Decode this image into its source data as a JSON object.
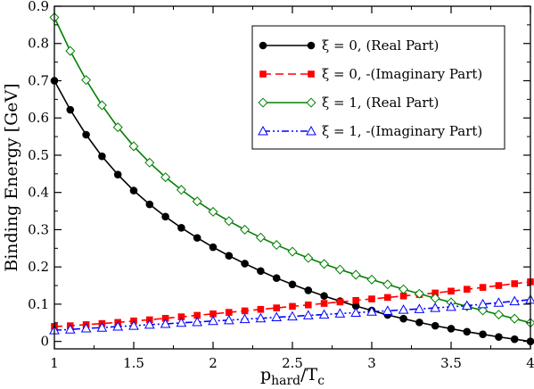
{
  "chart_data": {
    "type": "line",
    "xlabel": "p",
    "xlabel_sub": "hard",
    "xlabel_mid": "/T",
    "xlabel_sub2": "c",
    "ylabel": "Binding Energy [GeV]",
    "xlim": [
      1,
      4
    ],
    "ylim": [
      -0.02,
      0.9
    ],
    "xticks": [
      1,
      1.5,
      2,
      2.5,
      3,
      3.5,
      4
    ],
    "xtick_labels": [
      "1",
      "1.5",
      "2",
      "2.5",
      "3",
      "3.5",
      "4"
    ],
    "yticks": [
      0,
      0.1,
      0.2,
      0.3,
      0.4,
      0.5,
      0.6,
      0.7,
      0.8,
      0.9
    ],
    "ytick_labels": [
      "0",
      "0.1",
      "0.2",
      "0.3",
      "0.4",
      "0.5",
      "0.6",
      "0.7",
      "0.8",
      "0.9"
    ],
    "grid": false,
    "legend_position": "top-right",
    "x": [
      1.0,
      1.1,
      1.2,
      1.3,
      1.4,
      1.5,
      1.6,
      1.7,
      1.8,
      1.9,
      2.0,
      2.1,
      2.2,
      2.3,
      2.4,
      2.5,
      2.6,
      2.7,
      2.8,
      2.9,
      3.0,
      3.1,
      3.2,
      3.3,
      3.4,
      3.5,
      3.6,
      3.7,
      3.8,
      3.9,
      4.0
    ],
    "series": [
      {
        "name": "ξ = 0, (Real Part)",
        "color": "#000000",
        "marker": "filled-circle",
        "line": "solid",
        "values": [
          0.7,
          0.622,
          0.555,
          0.497,
          0.448,
          0.405,
          0.368,
          0.335,
          0.305,
          0.278,
          0.253,
          0.23,
          0.209,
          0.189,
          0.17,
          0.153,
          0.137,
          0.122,
          0.108,
          0.095,
          0.083,
          0.071,
          0.061,
          0.051,
          0.042,
          0.034,
          0.026,
          0.019,
          0.012,
          0.006,
          0.0
        ]
      },
      {
        "name": "ξ = 0, -(Imaginary Part)",
        "color": "#ff0000",
        "marker": "filled-square",
        "line": "dashed",
        "values": [
          0.04,
          0.042,
          0.045,
          0.048,
          0.051,
          0.055,
          0.058,
          0.062,
          0.066,
          0.07,
          0.074,
          0.078,
          0.082,
          0.086,
          0.09,
          0.094,
          0.098,
          0.102,
          0.106,
          0.11,
          0.114,
          0.118,
          0.122,
          0.126,
          0.13,
          0.135,
          0.14,
          0.145,
          0.15,
          0.155,
          0.16
        ]
      },
      {
        "name": "ξ = 1, (Real Part)",
        "color": "#008000",
        "marker": "open-diamond",
        "line": "solid",
        "values": [
          0.87,
          0.78,
          0.702,
          0.634,
          0.575,
          0.524,
          0.48,
          0.441,
          0.407,
          0.376,
          0.348,
          0.323,
          0.3,
          0.279,
          0.259,
          0.241,
          0.224,
          0.208,
          0.193,
          0.179,
          0.166,
          0.153,
          0.14,
          0.128,
          0.116,
          0.105,
          0.094,
          0.083,
          0.072,
          0.061,
          0.05
        ]
      },
      {
        "name": "ξ = 1, -(Imaginary Part)",
        "color": "#0000ff",
        "marker": "open-triangle",
        "line": "dash-dot-dot",
        "values": [
          0.03,
          0.032,
          0.035,
          0.037,
          0.04,
          0.042,
          0.045,
          0.047,
          0.05,
          0.052,
          0.055,
          0.057,
          0.06,
          0.062,
          0.065,
          0.067,
          0.07,
          0.072,
          0.075,
          0.077,
          0.08,
          0.082,
          0.085,
          0.087,
          0.09,
          0.093,
          0.096,
          0.1,
          0.104,
          0.108,
          0.112
        ]
      }
    ]
  }
}
